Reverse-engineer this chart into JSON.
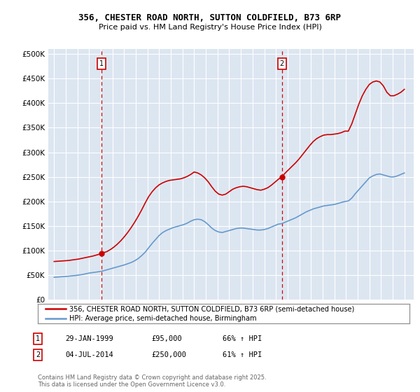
{
  "title1": "356, CHESTER ROAD NORTH, SUTTON COLDFIELD, B73 6RP",
  "title2": "Price paid vs. HM Land Registry's House Price Index (HPI)",
  "legend_line1": "356, CHESTER ROAD NORTH, SUTTON COLDFIELD, B73 6RP (semi-detached house)",
  "legend_line2": "HPI: Average price, semi-detached house, Birmingham",
  "footer": "Contains HM Land Registry data © Crown copyright and database right 2025.\nThis data is licensed under the Open Government Licence v3.0.",
  "sale1_label": "1",
  "sale1_date": "29-JAN-1999",
  "sale1_price": 95000,
  "sale1_price_str": "£95,000",
  "sale1_hpi": "66% ↑ HPI",
  "sale2_label": "2",
  "sale2_date": "04-JUL-2014",
  "sale2_price": 250000,
  "sale2_price_str": "£250,000",
  "sale2_hpi": "61% ↑ HPI",
  "ytick_labels": [
    "£0",
    "£50K",
    "£100K",
    "£150K",
    "£200K",
    "£250K",
    "£300K",
    "£350K",
    "£400K",
    "£450K",
    "£500K"
  ],
  "yticks": [
    0,
    50000,
    100000,
    150000,
    200000,
    250000,
    300000,
    350000,
    400000,
    450000,
    500000
  ],
  "ymax": 510000,
  "red_color": "#cc0000",
  "blue_color": "#6699cc",
  "sale1_x": 1999.08,
  "sale2_x": 2014.5,
  "plot_bg": "#dce6f1",
  "xmin": 1994.5,
  "xmax": 2025.8,
  "xticks": [
    1995,
    1996,
    1997,
    1998,
    1999,
    2000,
    2001,
    2002,
    2003,
    2004,
    2005,
    2006,
    2007,
    2008,
    2009,
    2010,
    2011,
    2012,
    2013,
    2014,
    2015,
    2016,
    2017,
    2018,
    2019,
    2020,
    2021,
    2022,
    2023,
    2024,
    2025
  ],
  "hpi_years": [
    1995.0,
    1995.3,
    1995.6,
    1995.9,
    1996.2,
    1996.5,
    1996.8,
    1997.1,
    1997.4,
    1997.7,
    1998.0,
    1998.3,
    1998.6,
    1998.9,
    1999.2,
    1999.5,
    1999.8,
    2000.1,
    2000.4,
    2000.7,
    2001.0,
    2001.3,
    2001.6,
    2001.9,
    2002.2,
    2002.5,
    2002.8,
    2003.1,
    2003.4,
    2003.7,
    2004.0,
    2004.3,
    2004.6,
    2004.9,
    2005.2,
    2005.5,
    2005.8,
    2006.1,
    2006.4,
    2006.7,
    2007.0,
    2007.3,
    2007.6,
    2007.9,
    2008.2,
    2008.5,
    2008.8,
    2009.1,
    2009.4,
    2009.7,
    2010.0,
    2010.3,
    2010.6,
    2010.9,
    2011.2,
    2011.5,
    2011.8,
    2012.1,
    2012.4,
    2012.7,
    2013.0,
    2013.3,
    2013.6,
    2013.9,
    2014.2,
    2014.5,
    2014.8,
    2015.1,
    2015.4,
    2015.7,
    2016.0,
    2016.3,
    2016.6,
    2016.9,
    2017.2,
    2017.5,
    2017.8,
    2018.1,
    2018.4,
    2018.7,
    2019.0,
    2019.3,
    2019.6,
    2019.9,
    2020.2,
    2020.5,
    2020.8,
    2021.1,
    2021.4,
    2021.7,
    2022.0,
    2022.3,
    2022.6,
    2022.9,
    2023.2,
    2023.5,
    2023.8,
    2024.1,
    2024.4,
    2024.7,
    2025.0
  ],
  "hpi_values": [
    46000,
    46500,
    47000,
    47500,
    48000,
    48800,
    49500,
    50500,
    51500,
    53000,
    54500,
    55500,
    56500,
    57500,
    59000,
    61000,
    63000,
    65000,
    67000,
    69000,
    71000,
    73500,
    76000,
    79500,
    84000,
    90000,
    97000,
    106000,
    115000,
    123000,
    131000,
    137000,
    141000,
    144000,
    147000,
    149000,
    151000,
    153000,
    156000,
    160000,
    163000,
    164000,
    163000,
    159000,
    153000,
    146000,
    141000,
    138000,
    137000,
    139000,
    141000,
    143000,
    145000,
    146000,
    146000,
    145000,
    144000,
    143000,
    142000,
    142000,
    143000,
    145000,
    148000,
    151000,
    154000,
    155000,
    158000,
    161000,
    164000,
    167000,
    171000,
    175000,
    179000,
    182000,
    185000,
    187000,
    189000,
    191000,
    192000,
    193000,
    194000,
    196000,
    198000,
    200000,
    201000,
    207000,
    216000,
    224000,
    232000,
    240000,
    248000,
    252000,
    255000,
    256000,
    254000,
    252000,
    250000,
    250000,
    252000,
    255000,
    258000
  ],
  "red_years": [
    1995.0,
    1995.3,
    1995.6,
    1995.9,
    1996.2,
    1996.5,
    1996.8,
    1997.1,
    1997.4,
    1997.7,
    1998.0,
    1998.3,
    1998.6,
    1998.9,
    1999.08,
    1999.5,
    1999.8,
    2000.1,
    2000.4,
    2000.7,
    2001.0,
    2001.3,
    2001.6,
    2001.9,
    2002.2,
    2002.5,
    2002.8,
    2003.1,
    2003.4,
    2003.7,
    2004.0,
    2004.3,
    2004.6,
    2004.9,
    2005.2,
    2005.5,
    2005.8,
    2006.1,
    2006.4,
    2006.7,
    2007.0,
    2007.3,
    2007.6,
    2007.9,
    2008.2,
    2008.5,
    2008.8,
    2009.1,
    2009.4,
    2009.7,
    2010.0,
    2010.3,
    2010.6,
    2010.9,
    2011.2,
    2011.5,
    2011.8,
    2012.1,
    2012.4,
    2012.7,
    2013.0,
    2013.3,
    2013.6,
    2013.9,
    2014.2,
    2014.5,
    2014.8,
    2015.1,
    2015.4,
    2015.7,
    2016.0,
    2016.3,
    2016.6,
    2016.9,
    2017.2,
    2017.5,
    2017.8,
    2018.1,
    2018.4,
    2018.7,
    2019.0,
    2019.3,
    2019.6,
    2019.9,
    2020.2,
    2020.5,
    2020.8,
    2021.1,
    2021.4,
    2021.7,
    2022.0,
    2022.3,
    2022.6,
    2022.9,
    2023.2,
    2023.5,
    2023.8,
    2024.1,
    2024.4,
    2024.7,
    2025.0
  ],
  "red_values": [
    78000,
    78500,
    79000,
    79500,
    80000,
    81000,
    82000,
    83000,
    84500,
    86000,
    87500,
    89000,
    91000,
    93000,
    95000,
    98000,
    102000,
    107000,
    113000,
    120000,
    128000,
    137000,
    147000,
    158000,
    170000,
    183000,
    197000,
    210000,
    220000,
    228000,
    234000,
    238000,
    241000,
    243000,
    244000,
    245000,
    246000,
    248000,
    251000,
    255000,
    260000,
    258000,
    254000,
    248000,
    240000,
    230000,
    221000,
    215000,
    213000,
    215000,
    220000,
    225000,
    228000,
    230000,
    231000,
    230000,
    228000,
    226000,
    224000,
    223000,
    225000,
    228000,
    233000,
    239000,
    245000,
    250000,
    258000,
    265000,
    272000,
    279000,
    287000,
    296000,
    305000,
    314000,
    322000,
    328000,
    332000,
    335000,
    336000,
    336000,
    337000,
    338000,
    340000,
    343000,
    343000,
    358000,
    378000,
    398000,
    415000,
    428000,
    438000,
    443000,
    445000,
    443000,
    435000,
    422000,
    415000,
    415000,
    418000,
    422000,
    428000
  ]
}
